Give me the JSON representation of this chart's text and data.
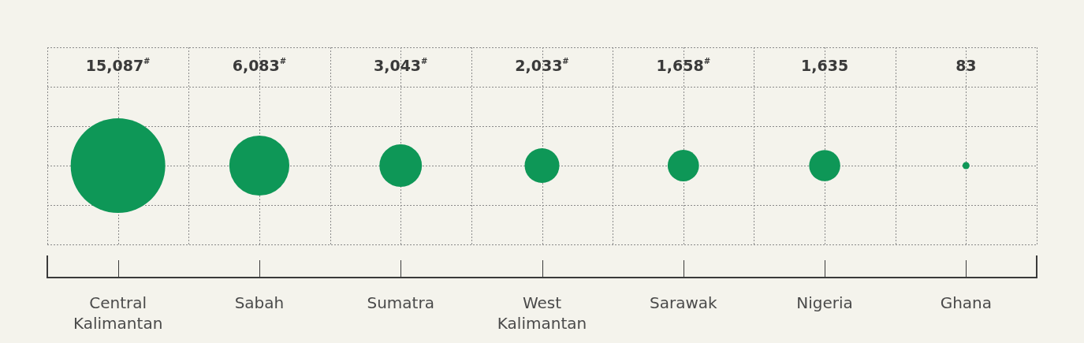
{
  "chart_data": {
    "type": "other",
    "categories": [
      "Central Kalimantan",
      "Sabah",
      "Sumatra",
      "West Kalimantan",
      "Sarawak",
      "Nigeria",
      "Ghana"
    ],
    "values": [
      15087,
      6083,
      3043,
      2033,
      1658,
      1635,
      83
    ],
    "value_labels": [
      "15,087$^{#}$",
      "6,083$^{#}$",
      "3,043$^{#}$",
      "2,033$^{#}$",
      "1,658$^{#}$",
      "1,635",
      "83"
    ],
    "color": "#0e9757"
  }
}
